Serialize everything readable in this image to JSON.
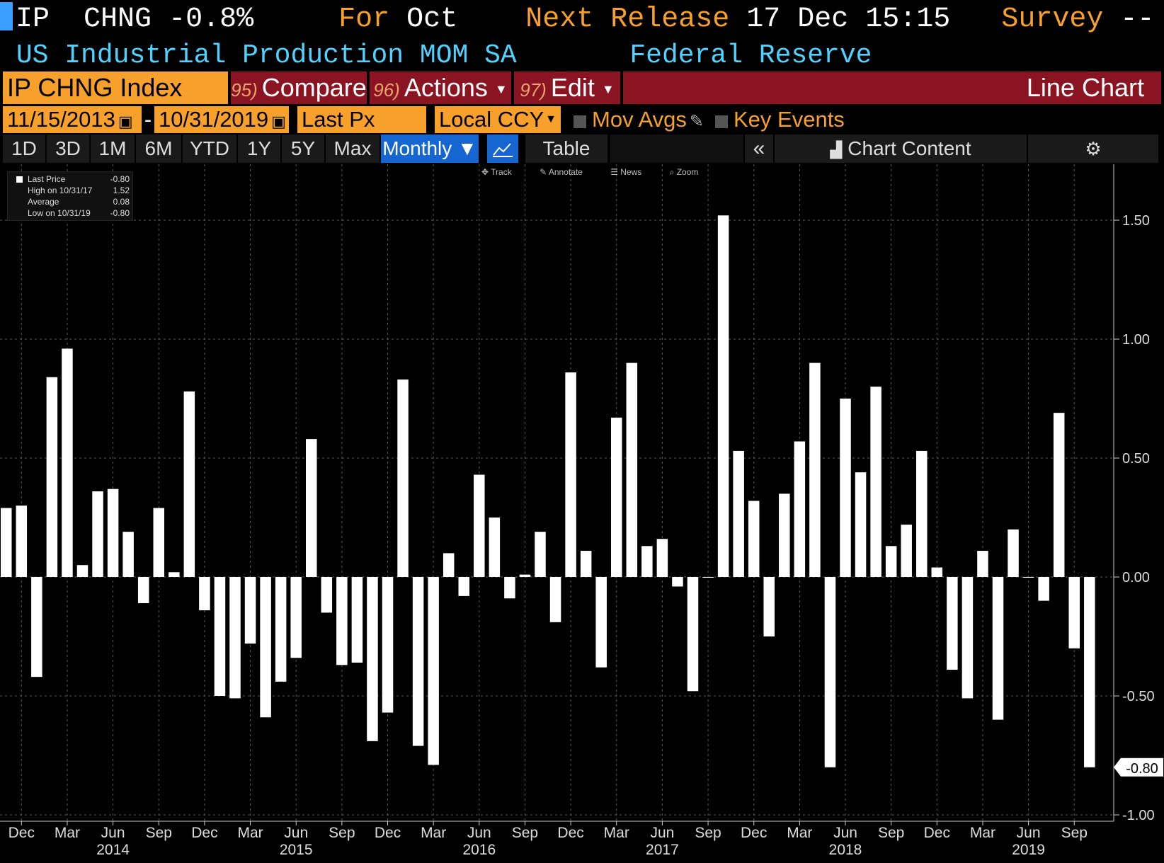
{
  "header": {
    "ticker": "IP",
    "field": "CHNG",
    "change": "-0.8%",
    "for_label": "For",
    "for_value": "Oct",
    "next_release_label": "Next Release",
    "next_release_value": "17 Dec 15:15",
    "survey_label": "Survey",
    "survey_value": "--",
    "series_name": "US Industrial Production MOM SA",
    "source": "Federal Reserve"
  },
  "toolbar": {
    "security": "IP CHNG Index",
    "compare_num": "95)",
    "compare": "Compare",
    "actions_num": "96)",
    "actions": "Actions",
    "edit_num": "97)",
    "edit": "Edit",
    "chart_type": "Line Chart",
    "start_date": "11/15/2013",
    "date_sep": "-",
    "end_date": "10/31/2019",
    "field": "Last Px",
    "currency": "Local CCY",
    "mov_avgs": "Mov Avgs",
    "key_events": "Key Events"
  },
  "ranges": [
    "1D",
    "3D",
    "1M",
    "6M",
    "YTD",
    "1Y",
    "5Y",
    "Max"
  ],
  "periodicity": "Monthly ▼",
  "table_label": "Table",
  "chart_content_label": "Chart Content",
  "tools": [
    "Track",
    "Annotate",
    "News",
    "Zoom"
  ],
  "legend": {
    "last_label": "Last Price",
    "last_value": "-0.80",
    "high_label": "High on 10/31/17",
    "high_value": "1.52",
    "avg_label": "Average",
    "avg_value": "0.08",
    "low_label": "Low on 10/31/19",
    "low_value": "-0.80"
  },
  "colors": {
    "accent": "#f7a02b",
    "cyan": "#4fd2ff",
    "red": "#8b1422",
    "blue": "#1566d0"
  },
  "chart_data": {
    "type": "bar",
    "title": "US Industrial Production MOM SA",
    "ylim": [
      -1.0,
      1.7
    ],
    "yticks": [
      1.5,
      1.0,
      0.5,
      0.0,
      -0.5,
      -1.0
    ],
    "ytick_labels": [
      "1.50",
      "1.00",
      "0.50",
      "0.00",
      "-0.50",
      "-1.00"
    ],
    "last_value_label": "-0.80",
    "x_start": "Nov 2013",
    "x_month_labels": [
      "Dec",
      "Mar",
      "Jun",
      "Sep",
      "Dec",
      "Mar",
      "Jun",
      "Sep",
      "Dec",
      "Mar",
      "Jun",
      "Sep",
      "Dec",
      "Mar",
      "Jun",
      "Sep",
      "Dec",
      "Mar",
      "Jun",
      "Sep",
      "Dec",
      "Mar",
      "Jun",
      "Sep"
    ],
    "x_year_labels": [
      "2014",
      "2015",
      "2016",
      "2017",
      "2018",
      "2019"
    ],
    "values": [
      0.29,
      0.3,
      -0.42,
      0.84,
      0.96,
      0.05,
      0.36,
      0.37,
      0.19,
      -0.11,
      0.29,
      0.02,
      0.78,
      -0.14,
      -0.5,
      -0.51,
      -0.28,
      -0.59,
      -0.44,
      -0.34,
      0.58,
      -0.15,
      -0.37,
      -0.36,
      -0.69,
      -0.57,
      0.83,
      -0.71,
      -0.79,
      0.1,
      -0.08,
      0.43,
      0.25,
      -0.09,
      0.01,
      0.19,
      -0.19,
      0.86,
      0.11,
      -0.38,
      0.67,
      0.9,
      0.13,
      0.16,
      -0.04,
      -0.48,
      0.0,
      1.52,
      0.53,
      0.32,
      -0.25,
      0.35,
      0.57,
      0.9,
      -0.8,
      0.75,
      0.44,
      0.8,
      0.13,
      0.22,
      0.53,
      0.04,
      -0.39,
      -0.51,
      0.11,
      -0.6,
      0.2,
      0.0,
      -0.1,
      0.69,
      -0.3,
      -0.8
    ]
  }
}
